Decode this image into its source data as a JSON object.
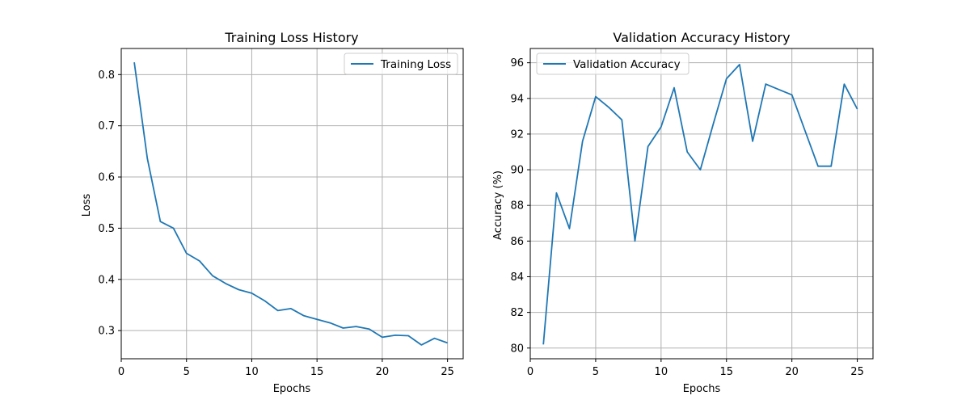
{
  "chart_data": [
    {
      "type": "line",
      "title": "Training Loss History",
      "xlabel": "Epochs",
      "ylabel": "Loss",
      "xlim": [
        0,
        26.2
      ],
      "ylim": [
        0.245,
        0.851
      ],
      "xticks": [
        0,
        5,
        10,
        15,
        20,
        25
      ],
      "yticks": [
        0.3,
        0.4,
        0.5,
        0.6,
        0.7,
        0.8
      ],
      "grid": true,
      "legend_position": "top-right",
      "color": "#1f77b4",
      "x": [
        1,
        2,
        3,
        4,
        5,
        6,
        7,
        8,
        9,
        10,
        11,
        12,
        13,
        14,
        15,
        16,
        17,
        18,
        19,
        20,
        21,
        22,
        23,
        24,
        25
      ],
      "series": [
        {
          "name": "Training Loss",
          "values": [
            0.824,
            0.636,
            0.513,
            0.5,
            0.451,
            0.436,
            0.407,
            0.392,
            0.38,
            0.373,
            0.358,
            0.339,
            0.343,
            0.329,
            0.322,
            0.315,
            0.305,
            0.308,
            0.303,
            0.287,
            0.291,
            0.29,
            0.272,
            0.285,
            0.276
          ]
        }
      ]
    },
    {
      "type": "line",
      "title": "Validation Accuracy History",
      "xlabel": "Epochs",
      "ylabel": "Accuracy (%)",
      "xlim": [
        0,
        26.2
      ],
      "ylim": [
        79.4,
        96.8
      ],
      "xticks": [
        0,
        5,
        10,
        15,
        20,
        25
      ],
      "yticks": [
        80,
        82,
        84,
        86,
        88,
        90,
        92,
        94,
        96
      ],
      "grid": true,
      "legend_position": "top-left",
      "color": "#1f77b4",
      "x": [
        1,
        2,
        3,
        4,
        5,
        6,
        7,
        8,
        9,
        10,
        11,
        12,
        13,
        14,
        15,
        16,
        17,
        18,
        19,
        20,
        21,
        22,
        23,
        24,
        25
      ],
      "series": [
        {
          "name": "Validation Accuracy",
          "values": [
            80.2,
            88.7,
            86.7,
            91.6,
            94.1,
            93.5,
            92.8,
            86.0,
            91.3,
            92.4,
            94.6,
            91.0,
            90.0,
            92.6,
            95.1,
            95.9,
            91.6,
            94.8,
            94.5,
            94.2,
            92.2,
            90.2,
            90.2,
            94.8,
            93.4
          ]
        }
      ]
    }
  ]
}
